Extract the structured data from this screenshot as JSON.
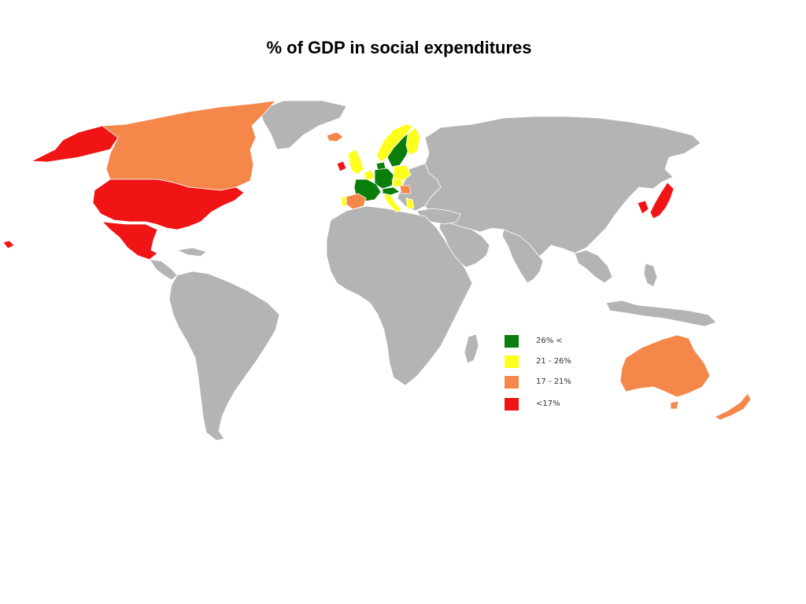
{
  "title": "% of GDP in social expenditures",
  "colors": {
    "no_data": "#b4b4b4",
    "border": "#ffffff",
    "over_26": "#0a7d0a",
    "21_26": "#ffff1e",
    "17_21": "#f5874b",
    "under_17": "#f01414"
  },
  "legend": {
    "items": [
      {
        "label": "26% <",
        "color_key": "over_26"
      },
      {
        "label": "21 - 26%",
        "color_key": "21_26"
      },
      {
        "label": "17 - 21%",
        "color_key": "17_21"
      },
      {
        "label": "<17%",
        "color_key": "under_17"
      }
    ]
  },
  "map": {
    "regions": [
      {
        "name": "Alaska",
        "category": "under_17"
      },
      {
        "name": "Canada",
        "category": "17_21"
      },
      {
        "name": "United States",
        "category": "under_17"
      },
      {
        "name": "Mexico",
        "category": "under_17"
      },
      {
        "name": "Hawaii",
        "category": "under_17"
      },
      {
        "name": "Iceland",
        "category": "17_21"
      },
      {
        "name": "Ireland",
        "category": "under_17"
      },
      {
        "name": "United Kingdom",
        "category": "21_26"
      },
      {
        "name": "Norway",
        "category": "21_26"
      },
      {
        "name": "Sweden",
        "category": "over_26"
      },
      {
        "name": "Finland",
        "category": "21_26"
      },
      {
        "name": "Denmark",
        "category": "over_26"
      },
      {
        "name": "France",
        "category": "over_26"
      },
      {
        "name": "Germany",
        "category": "over_26"
      },
      {
        "name": "Benelux",
        "category": "21_26"
      },
      {
        "name": "Poland",
        "category": "21_26"
      },
      {
        "name": "Austria",
        "category": "over_26"
      },
      {
        "name": "Czech Republic",
        "category": "21_26"
      },
      {
        "name": "Hungary",
        "category": "17_21"
      },
      {
        "name": "Spain",
        "category": "17_21"
      },
      {
        "name": "Portugal",
        "category": "21_26"
      },
      {
        "name": "Italy",
        "category": "21_26"
      },
      {
        "name": "Greece",
        "category": "21_26"
      },
      {
        "name": "Japan",
        "category": "under_17"
      },
      {
        "name": "South Korea",
        "category": "under_17"
      },
      {
        "name": "Australia",
        "category": "17_21"
      },
      {
        "name": "New Zealand",
        "category": "17_21"
      }
    ]
  }
}
